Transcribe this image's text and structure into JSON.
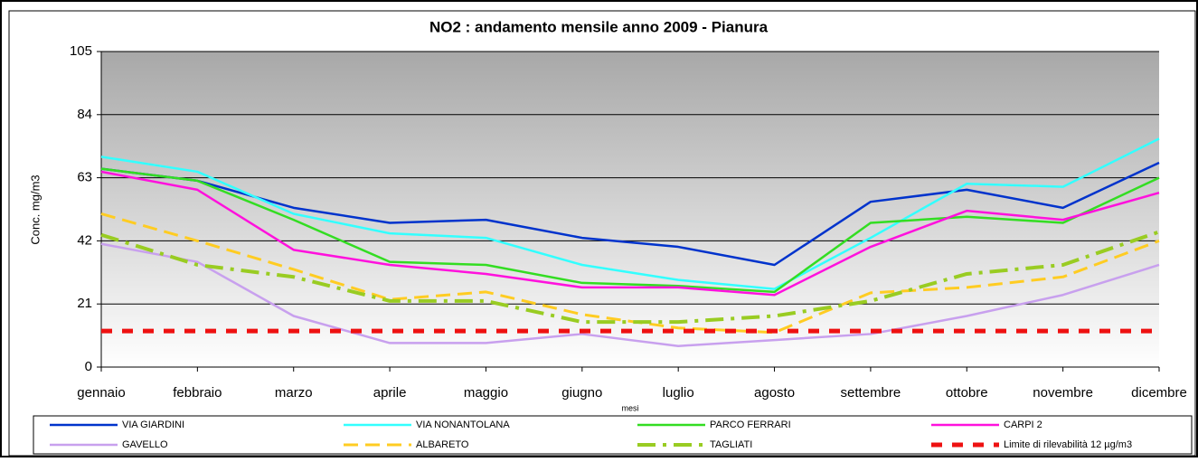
{
  "chart_data": {
    "type": "line",
    "title": "NO2 : andamento mensile anno 2009 - Pianura",
    "x_label": "mesi",
    "y_label": "Conc. mg/m3",
    "categories": [
      "gennaio",
      "febbraio",
      "marzo",
      "aprile",
      "maggio",
      "giugno",
      "luglio",
      "agosto",
      "settembre",
      "ottobre",
      "novembre",
      "dicembre"
    ],
    "ylim": [
      0,
      105
    ],
    "yticks": [
      0,
      21,
      42,
      63,
      84,
      105
    ],
    "grid": true,
    "series": [
      {
        "name": "VIA GIARDINI",
        "color": "#0033cc",
        "line_style": "solid",
        "values": [
          66,
          62,
          53,
          48,
          49,
          43,
          40,
          34,
          55,
          59,
          53,
          68
        ]
      },
      {
        "name": "VIA NONANTOLANA",
        "color": "#33ffff",
        "line_style": "solid",
        "values": [
          70,
          65,
          51,
          44.5,
          43,
          34,
          29,
          26,
          43,
          61,
          60,
          76
        ]
      },
      {
        "name": "PARCO FERRARI",
        "color": "#33dd22",
        "line_style": "solid",
        "values": [
          66,
          62,
          49,
          35,
          34,
          28,
          27,
          25,
          48,
          50,
          48,
          63
        ]
      },
      {
        "name": "CARPI 2",
        "color": "#ff11dd",
        "line_style": "solid",
        "values": [
          65,
          59,
          39,
          34,
          31,
          26.5,
          26.5,
          24,
          40,
          52,
          49,
          58
        ]
      },
      {
        "name": "GAVELLO",
        "color": "#c8a0ee",
        "line_style": "solid",
        "values": [
          41,
          35,
          17,
          8,
          8,
          11,
          7,
          9,
          11,
          17,
          24,
          34
        ]
      },
      {
        "name": "ALBARETO",
        "color": "#ffcc22",
        "line_style": "dash",
        "values": [
          51,
          42,
          32.5,
          22.5,
          25,
          17.5,
          13,
          11.5,
          24.7,
          26.5,
          30,
          42
        ]
      },
      {
        "name": "TAGLIATI",
        "color": "#99cc22",
        "line_style": "dashdot",
        "values": [
          44,
          34,
          30,
          22,
          22,
          15,
          15,
          17,
          22,
          31,
          34,
          45
        ]
      },
      {
        "name": "Limite di rilevabilità 12 µg/m3",
        "color": "#ee1111",
        "line_style": "thick-dash",
        "values": [
          12,
          12,
          12,
          12,
          12,
          12,
          12,
          12,
          12,
          12,
          12,
          12
        ]
      }
    ]
  }
}
